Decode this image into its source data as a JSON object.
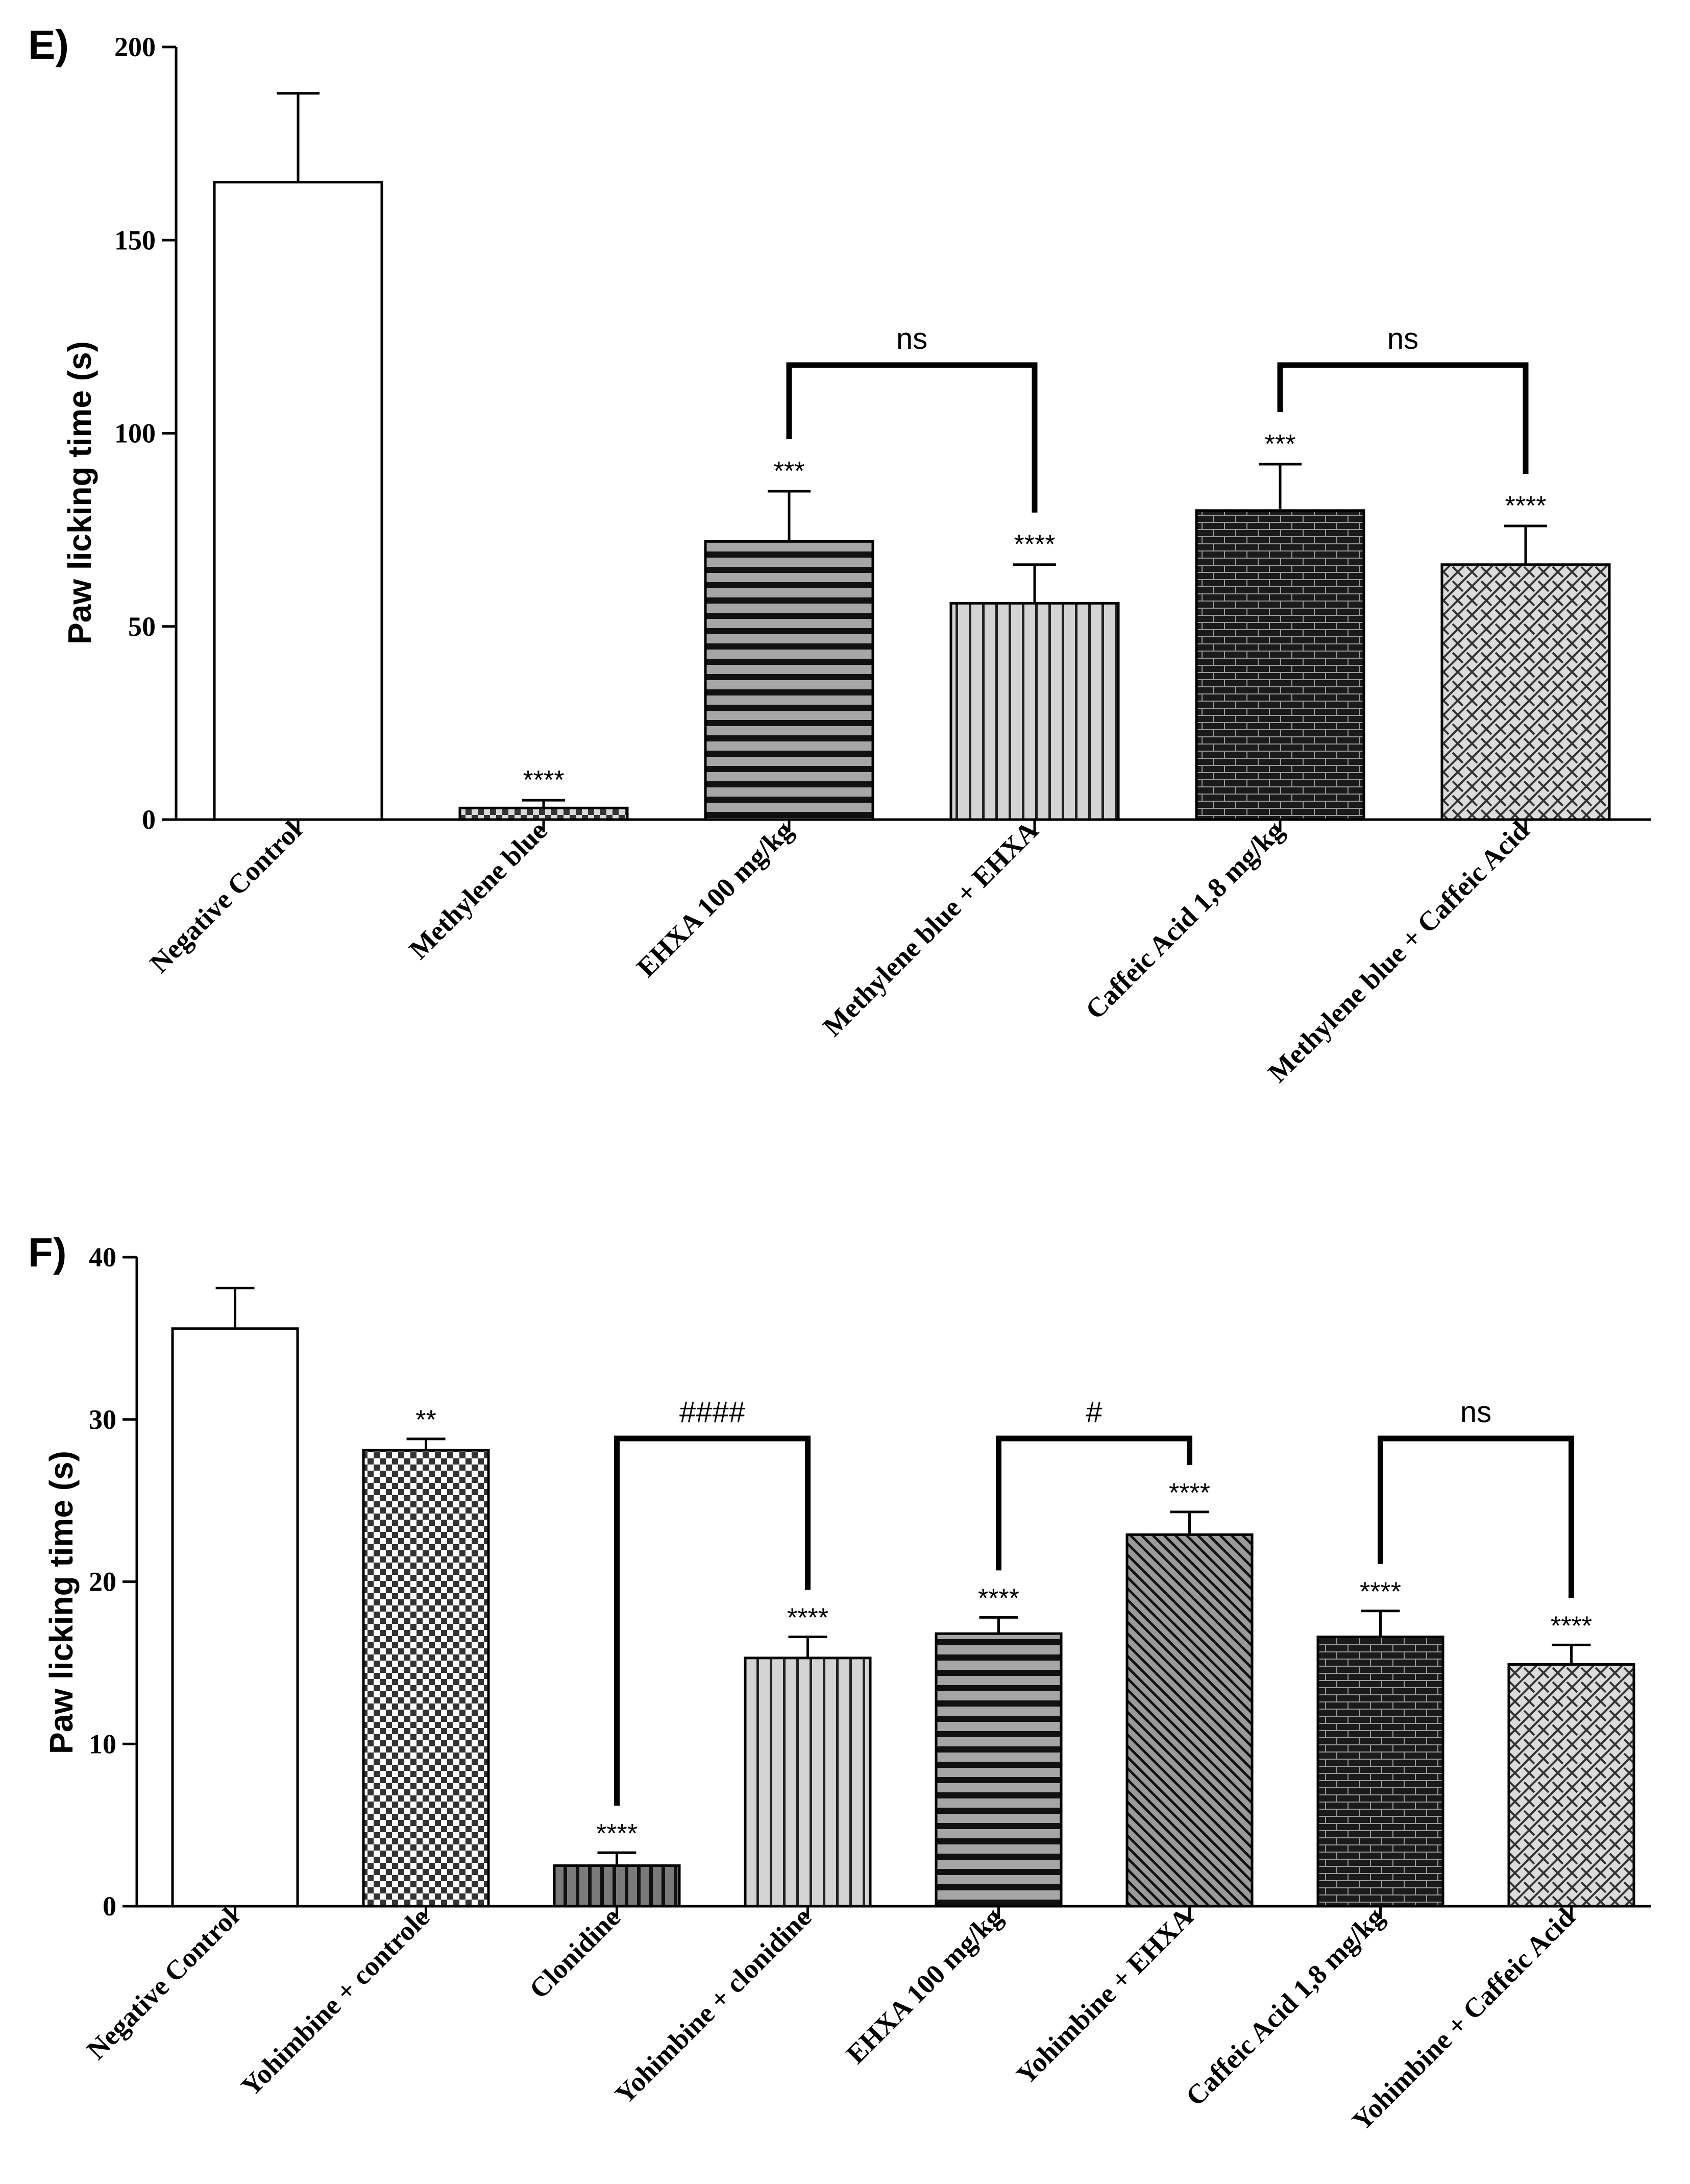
{
  "figure": {
    "panel_e_label": "E)",
    "panel_f_label": "F)"
  },
  "chart_data": [
    {
      "type": "bar",
      "panel": "E)",
      "title": "",
      "xlabel": "",
      "ylabel": "Paw licking time (s)",
      "ylim": [
        0,
        200
      ],
      "yticks": [
        0,
        50,
        100,
        150,
        200
      ],
      "grid": false,
      "categories": [
        "Negative Control",
        "Methylene blue",
        "EHXA 100 mg/kg",
        "Methylene blue + EHXA",
        "Caffeic Acid 1,8 mg/kg",
        "Methylene blue + Caffeic Acid"
      ],
      "values": [
        165,
        3,
        72,
        56,
        80,
        66
      ],
      "errors": [
        23,
        2,
        13,
        10,
        12,
        10
      ],
      "significance": [
        "",
        "****",
        "***",
        "****",
        "***",
        "****"
      ],
      "patterns": [
        "none",
        "checker-small",
        "hstripe",
        "vstripe",
        "brick",
        "weave"
      ],
      "comparisons": [
        {
          "from": 2,
          "to": 3,
          "label": "ns"
        },
        {
          "from": 4,
          "to": 5,
          "label": "ns"
        }
      ]
    },
    {
      "type": "bar",
      "panel": "F)",
      "title": "",
      "xlabel": "",
      "ylabel": "Paw licking time (s)",
      "ylim": [
        0,
        40
      ],
      "yticks": [
        0,
        10,
        20,
        30,
        40
      ],
      "grid": false,
      "categories": [
        "Negative Control",
        "Yohimbine + controle",
        "Clonidine",
        "Yohimbine + clonidine",
        "EHXA 100 mg/kg",
        "Yohimbine + EHXA",
        "Caffeic Acid 1,8 mg/kg",
        "Yohimbine + Caffeic Acid"
      ],
      "values": [
        35.6,
        28.1,
        2.5,
        15.3,
        16.8,
        22.9,
        16.6,
        14.9
      ],
      "errors": [
        2.5,
        0.7,
        0.8,
        1.3,
        1.0,
        1.4,
        1.6,
        1.2
      ],
      "significance": [
        "",
        "**",
        "****",
        "****",
        "****",
        "****",
        "****",
        "****"
      ],
      "patterns": [
        "none",
        "checker",
        "vstripe-dark",
        "vstripe",
        "hstripe",
        "diag",
        "brick",
        "weave"
      ],
      "comparisons": [
        {
          "from": 2,
          "to": 3,
          "label": "####"
        },
        {
          "from": 4,
          "to": 5,
          "label": "#"
        },
        {
          "from": 6,
          "to": 7,
          "label": "ns"
        }
      ]
    }
  ]
}
